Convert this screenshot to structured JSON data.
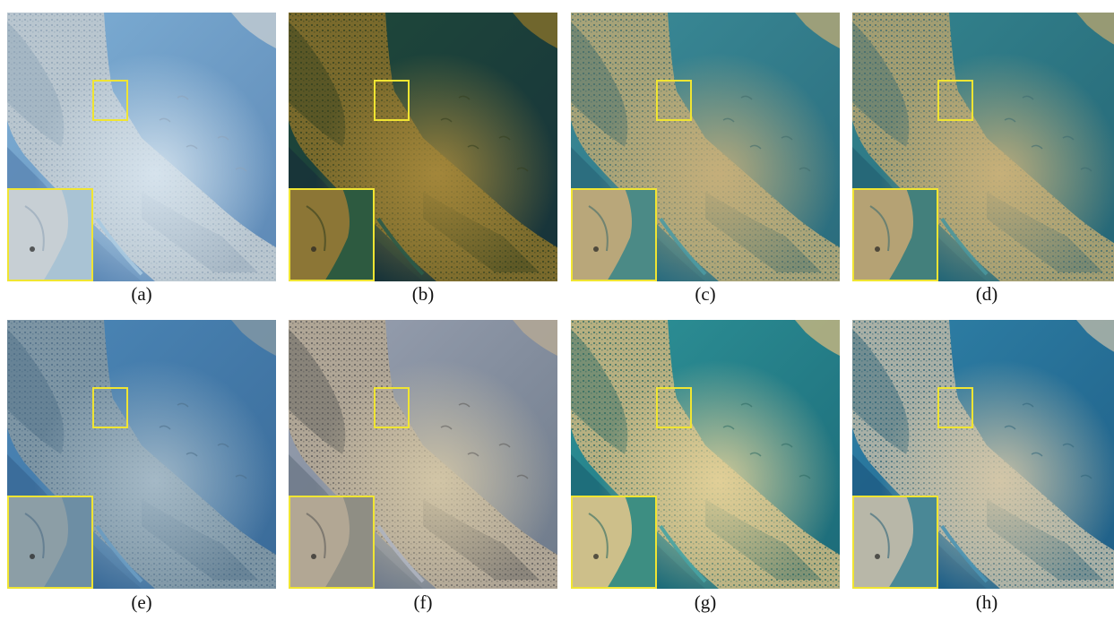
{
  "panels": [
    {
      "label": "(a)",
      "tones": {
        "land": "#b9c6cf",
        "landDark": "#8fa3b6",
        "water": "#7fb0d6",
        "waterEdge": "#a9c9e0",
        "glow": "#d9e6f0",
        "inset": "#c7cfd4",
        "insetWater": "#a9c3d4",
        "ocean": "#5d88b5"
      }
    },
    {
      "label": "(b)",
      "tones": {
        "land": "#7a6a2c",
        "landDark": "#34401f",
        "water": "#1f4a3a",
        "waterEdge": "#2b5a48",
        "glow": "#a88a3c",
        "inset": "#8c7636",
        "insetWater": "#2d5a40",
        "ocean": "#17323a"
      }
    },
    {
      "label": "(c)",
      "tones": {
        "land": "#a7a378",
        "landDark": "#3f6a6a",
        "water": "#3b8c98",
        "waterEdge": "#4d9aa2",
        "glow": "#c8b07a",
        "inset": "#b9a77a",
        "insetWater": "#4b8a86",
        "ocean": "#2a6b7c"
      }
    },
    {
      "label": "(d)",
      "tones": {
        "land": "#a39e72",
        "landDark": "#3c6a70",
        "water": "#34858f",
        "waterEdge": "#4a969c",
        "glow": "#cbb27a",
        "inset": "#b5a274",
        "insetWater": "#43807c",
        "ocean": "#256575"
      }
    },
    {
      "label": "(e)",
      "tones": {
        "land": "#7d95a4",
        "landDark": "#4d6d86",
        "water": "#4c88b8",
        "waterEdge": "#6a9cc2",
        "glow": "#a9bdca",
        "inset": "#8c9ea6",
        "insetWater": "#6d8ea4",
        "ocean": "#3a6a98"
      }
    },
    {
      "label": "(f)",
      "tones": {
        "land": "#b0a696",
        "landDark": "#5b5a58",
        "water": "#9aa2b2",
        "waterEdge": "#aeb4c0",
        "glow": "#d6c9a8",
        "inset": "#b2a794",
        "insetWater": "#8f8e84",
        "ocean": "#6e7a8a"
      }
    },
    {
      "label": "(g)",
      "tones": {
        "land": "#b7b081",
        "landDark": "#2e6a63",
        "water": "#2e9398",
        "waterEdge": "#47a3a3",
        "glow": "#e6d39a",
        "inset": "#cdbf8a",
        "insetWater": "#3d8e82",
        "ocean": "#1c6a78"
      }
    },
    {
      "label": "(h)",
      "tones": {
        "land": "#a9b0a6",
        "landDark": "#2f6478",
        "water": "#2f82a8",
        "waterEdge": "#4b94b2",
        "glow": "#d8c9a8",
        "inset": "#b8b7a8",
        "insetWater": "#4a8896",
        "ocean": "#1f5e86"
      }
    }
  ],
  "highlight_color": "#f0e532"
}
